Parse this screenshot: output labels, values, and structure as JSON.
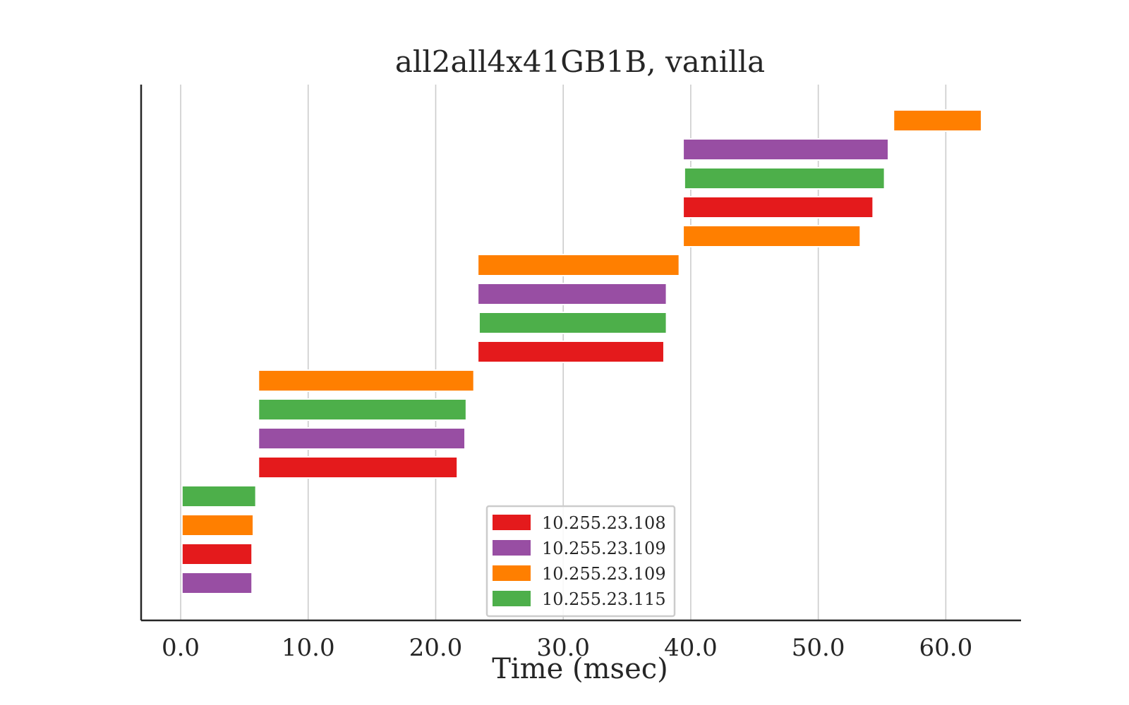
{
  "chart_data": {
    "type": "bar",
    "orientation": "horizontal",
    "title": "all2all4x41GB1B, vanilla",
    "xlabel": "Time (msec)",
    "ylabel": "",
    "xlim": [
      -3.1,
      65.9
    ],
    "xticks": [
      0,
      10,
      20,
      30,
      40,
      50,
      60
    ],
    "xtick_labels": [
      "0.0",
      "10.0",
      "20.0",
      "30.0",
      "40.0",
      "50.0",
      "60.0"
    ],
    "grid": "vertical",
    "legend_position": "lower-center",
    "legend": [
      {
        "label": "10.255.23.108",
        "color": "#e41a1c"
      },
      {
        "label": "10.255.23.109",
        "color": "#984ea3"
      },
      {
        "label": "10.255.23.109",
        "color": "#ff7f00"
      },
      {
        "label": "10.255.23.115",
        "color": "#4daf4a"
      }
    ],
    "bars": [
      {
        "row": 1,
        "start": 0.1,
        "end": 5.6,
        "color": "#984ea3"
      },
      {
        "row": 2,
        "start": 0.1,
        "end": 5.6,
        "color": "#e41a1c"
      },
      {
        "row": 3,
        "start": 0.1,
        "end": 5.7,
        "color": "#ff7f00"
      },
      {
        "row": 4,
        "start": 0.1,
        "end": 5.9,
        "color": "#4daf4a"
      },
      {
        "row": 5,
        "start": 6.1,
        "end": 21.7,
        "color": "#e41a1c"
      },
      {
        "row": 6,
        "start": 6.1,
        "end": 22.3,
        "color": "#984ea3"
      },
      {
        "row": 7,
        "start": 6.1,
        "end": 22.4,
        "color": "#4daf4a"
      },
      {
        "row": 8,
        "start": 6.1,
        "end": 23.0,
        "color": "#ff7f00"
      },
      {
        "row": 9,
        "start": 23.3,
        "end": 37.9,
        "color": "#e41a1c"
      },
      {
        "row": 10,
        "start": 23.4,
        "end": 38.1,
        "color": "#4daf4a"
      },
      {
        "row": 11,
        "start": 23.3,
        "end": 38.1,
        "color": "#984ea3"
      },
      {
        "row": 12,
        "start": 23.3,
        "end": 39.1,
        "color": "#ff7f00"
      },
      {
        "row": 13,
        "start": 39.4,
        "end": 53.3,
        "color": "#ff7f00"
      },
      {
        "row": 14,
        "start": 39.4,
        "end": 54.3,
        "color": "#e41a1c"
      },
      {
        "row": 15,
        "start": 39.5,
        "end": 55.2,
        "color": "#4daf4a"
      },
      {
        "row": 16,
        "start": 39.4,
        "end": 55.5,
        "color": "#984ea3"
      },
      {
        "row": 17,
        "start": 55.9,
        "end": 62.8,
        "color": "#ff7f00"
      }
    ]
  }
}
